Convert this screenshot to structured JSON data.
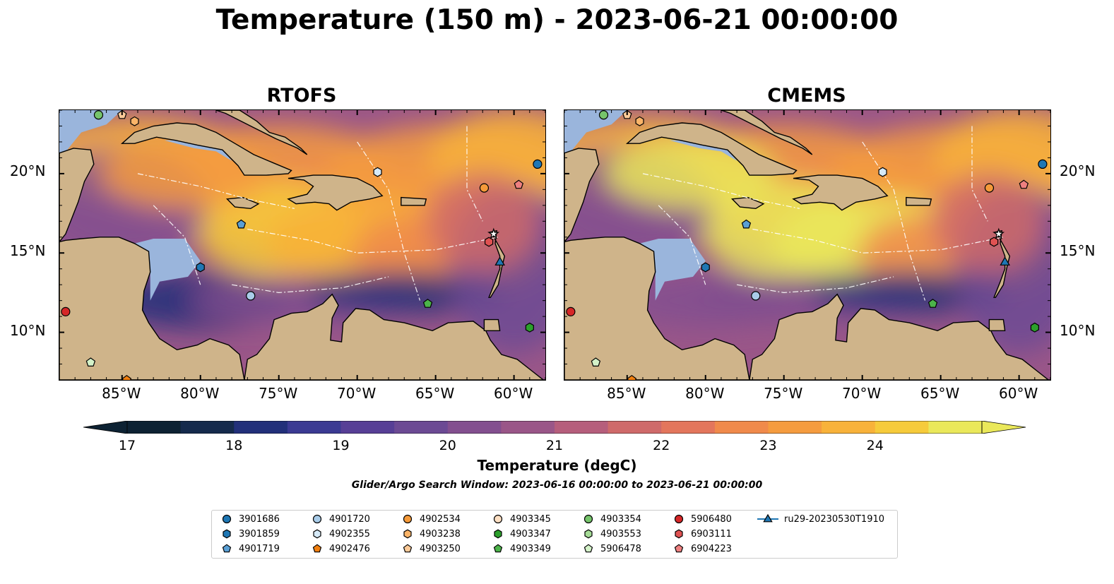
{
  "title": "Temperature (150 m) - 2023-06-21 00:00:00",
  "panels": [
    {
      "id": "rtofs",
      "title": "RTOFS"
    },
    {
      "id": "cmems",
      "title": "CMEMS"
    }
  ],
  "map": {
    "lon_range": [
      -89,
      -58
    ],
    "lat_range": [
      7,
      24
    ],
    "lon_ticks": [
      "85°W",
      "80°W",
      "75°W",
      "70°W",
      "65°W",
      "60°W"
    ],
    "lat_ticks": [
      "20°N",
      "15°N",
      "10°N"
    ],
    "land_color": "#cfb48a",
    "shelf_color": "#9ab5dc"
  },
  "colorbar": {
    "label": "Temperature (degC)",
    "ticks": [
      "17",
      "18",
      "19",
      "20",
      "21",
      "22",
      "23",
      "24"
    ],
    "colors": [
      "#0d2233",
      "#152a4c",
      "#22307a",
      "#3b3a93",
      "#573f96",
      "#6c4a94",
      "#834f8f",
      "#9a5688",
      "#b65e7c",
      "#cf6a6a",
      "#e3765c",
      "#f08a4b",
      "#f59c3f",
      "#f8b23a",
      "#f6cb3b",
      "#eae85a"
    ]
  },
  "search_window": "Glider/Argo Search Window: 2023-06-16 00:00:00 to 2023-06-21 00:00:00",
  "legend": [
    {
      "label": "3901686",
      "color": "#1f77b4",
      "marker": "circle"
    },
    {
      "label": "3901859",
      "color": "#1f77b4",
      "marker": "hexagon"
    },
    {
      "label": "4901719",
      "color": "#5a9fd4",
      "marker": "pentagon"
    },
    {
      "label": "4901720",
      "color": "#a9cce9",
      "marker": "circle"
    },
    {
      "label": "4902355",
      "color": "#d6eaf8",
      "marker": "hexagon"
    },
    {
      "label": "4902476",
      "color": "#f07f10",
      "marker": "pentagon"
    },
    {
      "label": "4902534",
      "color": "#f59a3a",
      "marker": "circle"
    },
    {
      "label": "4903238",
      "color": "#fbb468",
      "marker": "hexagon"
    },
    {
      "label": "4903250",
      "color": "#fcca98",
      "marker": "pentagon"
    },
    {
      "label": "4903345",
      "color": "#fde0c4",
      "marker": "circle"
    },
    {
      "label": "4903347",
      "color": "#2ca02c",
      "marker": "hexagon"
    },
    {
      "label": "4903349",
      "color": "#4cb34a",
      "marker": "pentagon"
    },
    {
      "label": "4903354",
      "color": "#76c46b",
      "marker": "circle"
    },
    {
      "label": "4903553",
      "color": "#a6dc97",
      "marker": "hexagon"
    },
    {
      "label": "5906478",
      "color": "#d4f2c9",
      "marker": "pentagon"
    },
    {
      "label": "5906480",
      "color": "#d62728",
      "marker": "circle"
    },
    {
      "label": "6903111",
      "color": "#e05252",
      "marker": "hexagon"
    },
    {
      "label": "6904223",
      "color": "#ee8080",
      "marker": "pentagon"
    },
    {
      "label": "ru29-20230530T1910",
      "color": "#1f77b4",
      "marker": "triangle-line"
    }
  ],
  "markers": [
    {
      "lon": -86.5,
      "lat": 23.7,
      "color": "#76c46b",
      "marker": "circle"
    },
    {
      "lon": -85.0,
      "lat": 23.7,
      "color": "#fcca98",
      "marker": "pentagon"
    },
    {
      "lon": -84.2,
      "lat": 23.3,
      "color": "#fbb468",
      "marker": "hexagon"
    },
    {
      "lon": -58.5,
      "lat": 20.6,
      "color": "#1f77b4",
      "marker": "circle"
    },
    {
      "lon": -68.7,
      "lat": 20.1,
      "color": "#d6eaf8",
      "marker": "hexagon"
    },
    {
      "lon": -61.9,
      "lat": 19.1,
      "color": "#f59a3a",
      "marker": "circle"
    },
    {
      "lon": -59.7,
      "lat": 19.3,
      "color": "#ee8080",
      "marker": "pentagon"
    },
    {
      "lon": -77.4,
      "lat": 16.8,
      "color": "#5a9fd4",
      "marker": "pentagon"
    },
    {
      "lon": -61.3,
      "lat": 16.2,
      "color": "#ffffff",
      "marker": "star"
    },
    {
      "lon": -61.6,
      "lat": 15.7,
      "color": "#e05252",
      "marker": "hexagon"
    },
    {
      "lon": -60.9,
      "lat": 14.4,
      "color": "#1f77b4",
      "marker": "triangle"
    },
    {
      "lon": -80.0,
      "lat": 14.1,
      "color": "#1f77b4",
      "marker": "hexagon"
    },
    {
      "lon": -76.8,
      "lat": 12.3,
      "color": "#a9cce9",
      "marker": "circle"
    },
    {
      "lon": -65.5,
      "lat": 11.8,
      "color": "#4cb34a",
      "marker": "pentagon"
    },
    {
      "lon": -88.6,
      "lat": 11.3,
      "color": "#d62728",
      "marker": "circle"
    },
    {
      "lon": -59.0,
      "lat": 10.3,
      "color": "#2ca02c",
      "marker": "hexagon"
    },
    {
      "lon": -87.0,
      "lat": 8.1,
      "color": "#d4f2c9",
      "marker": "pentagon"
    },
    {
      "lon": -84.7,
      "lat": 7.0,
      "color": "#f07f10",
      "marker": "pentagon"
    }
  ]
}
